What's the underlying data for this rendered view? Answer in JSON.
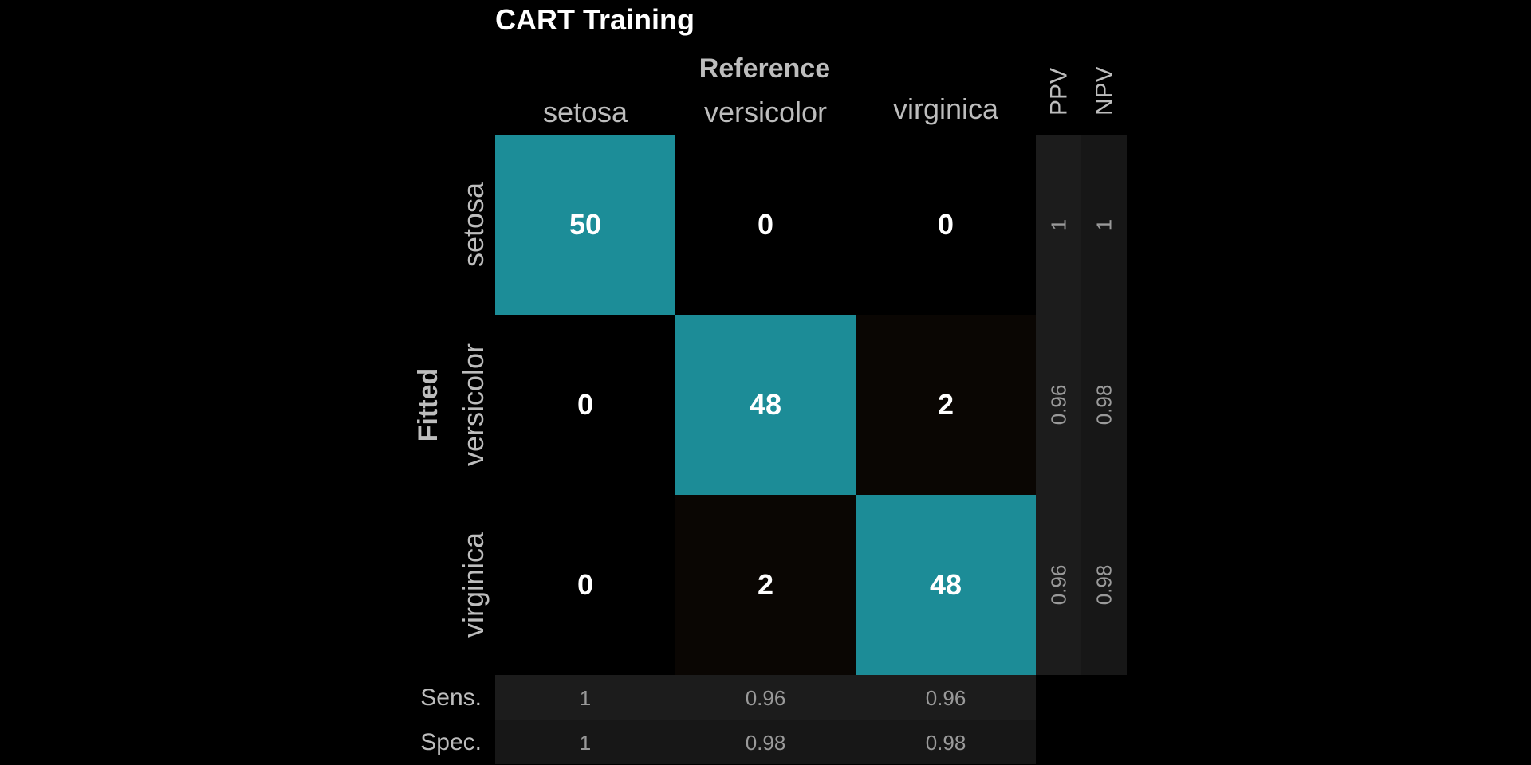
{
  "chart_data": {
    "type": "heatmap",
    "title": "CART Training",
    "xlabel": "Reference",
    "ylabel": "Fitted",
    "reference_classes": [
      "setosa",
      "versicolor",
      "virginica"
    ],
    "fitted_classes": [
      "setosa",
      "versicolor",
      "virginica"
    ],
    "matrix": [
      [
        50,
        0,
        0
      ],
      [
        0,
        48,
        2
      ],
      [
        0,
        2,
        48
      ]
    ],
    "column_metric_labels": [
      "PPV",
      "NPV"
    ],
    "ppv": [
      "1",
      "0.96",
      "0.96"
    ],
    "npv": [
      "1",
      "0.98",
      "0.98"
    ],
    "row_metric_labels": [
      "Sens.",
      "Spec."
    ],
    "sensitivity": [
      "1",
      "0.96",
      "0.96"
    ],
    "specificity": [
      "1",
      "0.98",
      "0.98"
    ]
  },
  "colors": {
    "background": "#000000",
    "high": "#1c8d98",
    "low": "#0a0603",
    "metric_cell_a": "#1c1c1c",
    "metric_cell_b": "#171717",
    "text": "#ffffff",
    "label_text": "#bdbdbd",
    "metric_text": "#9a9a9a"
  }
}
